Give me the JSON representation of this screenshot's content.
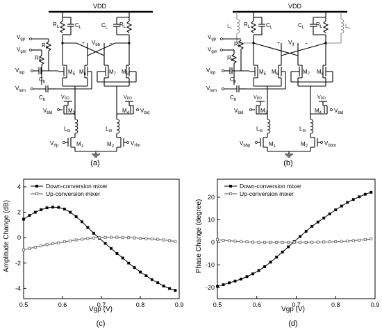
{
  "figure": {
    "captions": [
      "(a)",
      "(b)",
      "(c)",
      "(d)"
    ]
  },
  "circuit_a": {
    "vdd": "VDD",
    "rl": "R",
    "rl_sub": "L",
    "cl": "C",
    "cl_sub": "L",
    "vbb": "V",
    "vbb_sub": "bb",
    "plus": "+",
    "minus": "–",
    "vgp": "V",
    "vgp_sub": "gp",
    "vgm": "V",
    "vgm_sub": "gm",
    "rb": "R",
    "rb_sub": "b",
    "vlop": "V",
    "vlop_sub": "lop",
    "vlom": "V",
    "vlom_sub": "lom",
    "cb": "C",
    "cb_sub": "b",
    "m5": "M",
    "m5_sub": "5",
    "m6": "M",
    "m6_sub": "6",
    "m7": "M",
    "m7_sub": "7",
    "m8": "M",
    "m8_sub": "8",
    "m3": "M",
    "m3_sub": "3",
    "m4": "M",
    "m4_sub": "4",
    "m1": "M",
    "m1_sub": "1",
    "m2": "M",
    "m2_sub": "2",
    "vbld": "V",
    "vbld_sub": "bld",
    "lm": "L",
    "lm_sub": "m",
    "vrfp": "V",
    "vrfp_sub": "rfp",
    "vrfm": "V",
    "vrfm_sub": "rfm"
  },
  "circuit_b": {
    "ll": "L",
    "ll_sub": "L",
    "vif": "V",
    "vif_sub": "if",
    "vbbp": "V",
    "vbbp_sub": "bbp",
    "vbbm": "V",
    "vbbm_sub": "bbm"
  },
  "chart_data": [
    {
      "type": "line",
      "xlabel": "Vgp (V)",
      "ylabel": "Amplitude Change (dB)",
      "xlim": [
        0.5,
        0.9
      ],
      "ylim": [
        -4.8,
        4.6
      ],
      "xticks": [
        "0.5",
        "0.6",
        "0.7",
        "0.8",
        "0.9"
      ],
      "yticks": [
        "-4",
        "-2",
        "0",
        "2",
        "4"
      ],
      "xtick_values": [
        0.5,
        0.6,
        0.7,
        0.8,
        0.9
      ],
      "ytick_values": [
        -4,
        -2,
        0,
        2,
        4
      ],
      "legend_position": "top-left",
      "series": [
        {
          "name": "Down-conversion mixer",
          "marker": "square-filled",
          "x": [
            0.5,
            0.515,
            0.53,
            0.545,
            0.56,
            0.575,
            0.59,
            0.605,
            0.62,
            0.635,
            0.65,
            0.665,
            0.68,
            0.695,
            0.71,
            0.725,
            0.74,
            0.755,
            0.77,
            0.785,
            0.8,
            0.815,
            0.83,
            0.845,
            0.86,
            0.875,
            0.89
          ],
          "y": [
            1.45,
            1.75,
            2.0,
            2.2,
            2.35,
            2.4,
            2.38,
            2.25,
            2.0,
            1.65,
            1.25,
            0.8,
            0.35,
            -0.05,
            -0.45,
            -0.85,
            -1.25,
            -1.6,
            -2.0,
            -2.35,
            -2.7,
            -3.0,
            -3.3,
            -3.55,
            -3.8,
            -4.0,
            -4.15
          ]
        },
        {
          "name": "Up-conversion mixer",
          "marker": "square-open",
          "x": [
            0.5,
            0.515,
            0.53,
            0.545,
            0.56,
            0.575,
            0.59,
            0.605,
            0.62,
            0.635,
            0.65,
            0.665,
            0.68,
            0.695,
            0.71,
            0.725,
            0.74,
            0.755,
            0.77,
            0.785,
            0.8,
            0.815,
            0.83,
            0.845,
            0.86,
            0.875,
            0.89
          ],
          "y": [
            -0.95,
            -0.85,
            -0.75,
            -0.65,
            -0.55,
            -0.47,
            -0.4,
            -0.32,
            -0.25,
            -0.18,
            -0.12,
            -0.07,
            -0.03,
            0.0,
            0.02,
            0.03,
            0.03,
            0.02,
            0.0,
            -0.02,
            -0.05,
            -0.08,
            -0.1,
            -0.13,
            -0.18,
            -0.23,
            -0.3
          ]
        }
      ]
    },
    {
      "type": "line",
      "xlabel": "Vgp (V)",
      "ylabel": "Phase Change (degree)",
      "xlim": [
        0.5,
        0.9
      ],
      "ylim": [
        -25,
        28
      ],
      "xticks": [
        "0.5",
        "0.6",
        "0.7",
        "0.8",
        "0.9"
      ],
      "yticks": [
        "-20",
        "-10",
        "0",
        "10",
        "20"
      ],
      "xtick_values": [
        0.5,
        0.6,
        0.7,
        0.8,
        0.9
      ],
      "ytick_values": [
        -20,
        -10,
        0,
        10,
        20
      ],
      "legend_position": "top-left",
      "series": [
        {
          "name": "Down-conversion mixer",
          "marker": "square-filled",
          "x": [
            0.5,
            0.515,
            0.53,
            0.545,
            0.56,
            0.575,
            0.59,
            0.605,
            0.62,
            0.635,
            0.65,
            0.665,
            0.68,
            0.695,
            0.71,
            0.725,
            0.74,
            0.755,
            0.77,
            0.785,
            0.8,
            0.815,
            0.83,
            0.845,
            0.86,
            0.875,
            0.89
          ],
          "y": [
            -19.5,
            -18.8,
            -18.0,
            -17.2,
            -16.3,
            -15.2,
            -14.0,
            -12.5,
            -10.8,
            -8.8,
            -6.6,
            -4.3,
            -2.0,
            0.3,
            2.6,
            4.9,
            7.1,
            9.0,
            10.8,
            12.6,
            14.4,
            16.1,
            17.7,
            19.0,
            20.2,
            21.3,
            22.2
          ]
        },
        {
          "name": "Up-conversion mixer",
          "marker": "square-open",
          "x": [
            0.5,
            0.515,
            0.53,
            0.545,
            0.56,
            0.575,
            0.59,
            0.605,
            0.62,
            0.635,
            0.65,
            0.665,
            0.68,
            0.695,
            0.71,
            0.725,
            0.74,
            0.755,
            0.77,
            0.785,
            0.8,
            0.815,
            0.83,
            0.845,
            0.86,
            0.875,
            0.89
          ],
          "y": [
            1.2,
            0.9,
            0.7,
            0.5,
            0.35,
            0.2,
            0.1,
            0.05,
            0.0,
            0.0,
            0.0,
            0.0,
            0.0,
            0.0,
            0.0,
            0.0,
            0.05,
            0.1,
            0.15,
            0.2,
            0.3,
            0.4,
            0.55,
            0.75,
            0.95,
            1.2,
            1.5
          ]
        }
      ]
    }
  ]
}
